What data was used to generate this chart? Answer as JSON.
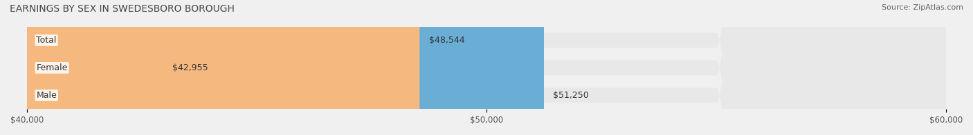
{
  "title": "EARNINGS BY SEX IN SWEDESBORO BOROUGH",
  "source": "Source: ZipAtlas.com",
  "categories": [
    "Male",
    "Female",
    "Total"
  ],
  "values": [
    51250,
    42955,
    48544
  ],
  "bar_colors": [
    "#6aaed6",
    "#f4a0b5",
    "#f5b97f"
  ],
  "bar_labels": [
    "$51,250",
    "$42,955",
    "$48,544"
  ],
  "xlim": [
    40000,
    60000
  ],
  "xticks": [
    40000,
    50000,
    60000
  ],
  "xtick_labels": [
    "$40,000",
    "$50,000",
    "$60,000"
  ],
  "background_color": "#f0f0f0",
  "bar_background_color": "#e8e8e8",
  "title_fontsize": 10,
  "label_fontsize": 9,
  "tick_fontsize": 8.5,
  "source_fontsize": 8,
  "bar_height": 0.55
}
